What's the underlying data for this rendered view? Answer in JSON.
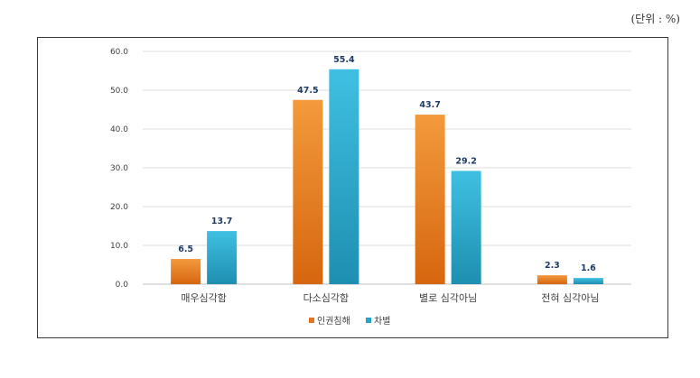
{
  "unit_note": "(단위 : %)",
  "chart_data": {
    "type": "bar",
    "categories": [
      "매우심각함",
      "다소심각함",
      "별로 심각아님",
      "전혀 심각아님"
    ],
    "series": [
      {
        "name": "인권침해",
        "values": [
          6.5,
          47.5,
          43.7,
          2.3
        ],
        "color": "#e8731e"
      },
      {
        "name": "차별",
        "values": [
          13.7,
          55.4,
          29.2,
          1.6
        ],
        "color": "#27a3c6"
      }
    ],
    "yticks": [
      "0.0",
      "10.0",
      "20.0",
      "30.0",
      "40.0",
      "50.0",
      "60.0"
    ],
    "ylim": [
      0,
      60
    ],
    "grid": true,
    "legend_position": "bottom"
  }
}
